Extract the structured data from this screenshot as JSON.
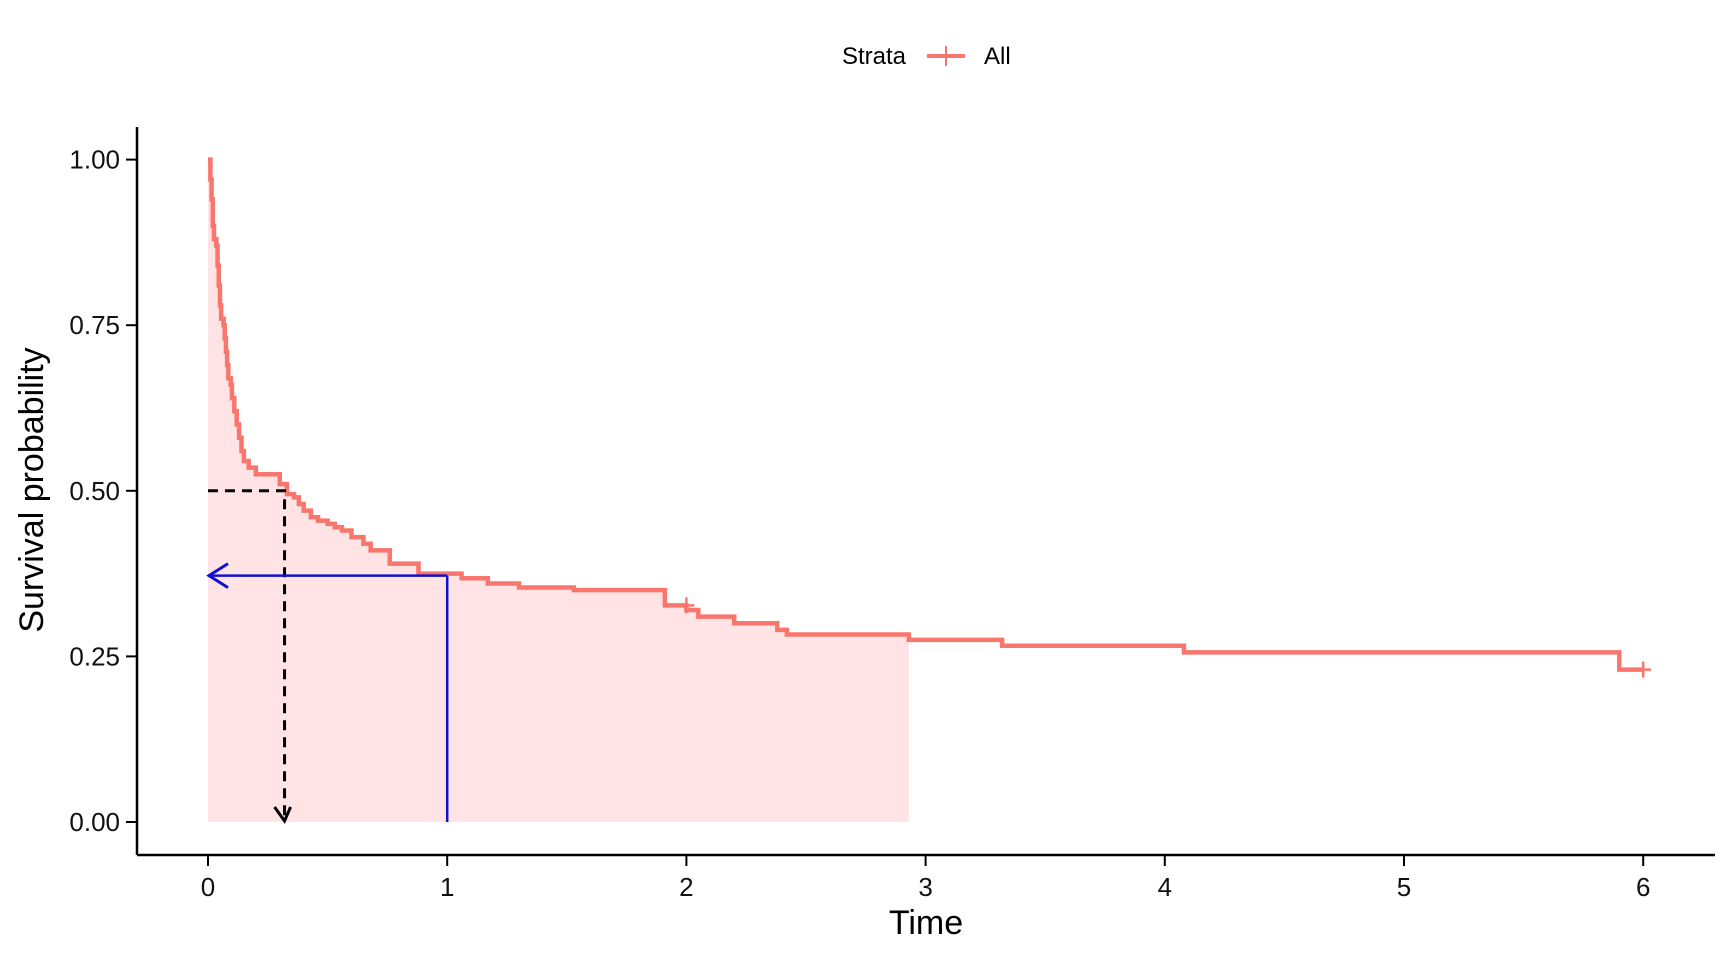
{
  "chart_data": {
    "type": "line",
    "subtype": "kaplan-meier",
    "xlabel": "Time",
    "ylabel": "Survival probability",
    "xlim": [
      -0.3,
      6.3
    ],
    "ylim": [
      -0.05,
      1.05
    ],
    "x_ticks": [
      0,
      1,
      2,
      3,
      4,
      5,
      6
    ],
    "y_ticks": [
      0.0,
      0.25,
      0.5,
      0.75,
      1.0
    ],
    "y_tick_labels": [
      "0.00",
      "0.25",
      "0.50",
      "0.75",
      "1.00"
    ],
    "grid": false,
    "legend": {
      "position": "top",
      "title": "Strata",
      "entries": [
        "All"
      ]
    },
    "colors": {
      "curve": "#f8766d",
      "fill": "#ffe3e5",
      "arrow": "#1010d0",
      "median_guide": "#000000"
    },
    "series": [
      {
        "name": "All",
        "steps": [
          [
            0.0,
            1.0
          ],
          [
            0.01,
            0.97
          ],
          [
            0.015,
            0.94
          ],
          [
            0.02,
            0.9
          ],
          [
            0.025,
            0.88
          ],
          [
            0.035,
            0.87
          ],
          [
            0.04,
            0.84
          ],
          [
            0.045,
            0.81
          ],
          [
            0.05,
            0.78
          ],
          [
            0.055,
            0.76
          ],
          [
            0.065,
            0.75
          ],
          [
            0.07,
            0.73
          ],
          [
            0.075,
            0.71
          ],
          [
            0.08,
            0.69
          ],
          [
            0.085,
            0.67
          ],
          [
            0.095,
            0.66
          ],
          [
            0.1,
            0.64
          ],
          [
            0.11,
            0.62
          ],
          [
            0.12,
            0.6
          ],
          [
            0.13,
            0.58
          ],
          [
            0.14,
            0.56
          ],
          [
            0.15,
            0.545
          ],
          [
            0.17,
            0.535
          ],
          [
            0.2,
            0.525
          ],
          [
            0.3,
            0.51
          ],
          [
            0.33,
            0.495
          ],
          [
            0.36,
            0.49
          ],
          [
            0.38,
            0.48
          ],
          [
            0.4,
            0.47
          ],
          [
            0.43,
            0.46
          ],
          [
            0.46,
            0.455
          ],
          [
            0.5,
            0.45
          ],
          [
            0.53,
            0.445
          ],
          [
            0.56,
            0.44
          ],
          [
            0.6,
            0.43
          ],
          [
            0.65,
            0.42
          ],
          [
            0.68,
            0.41
          ],
          [
            0.76,
            0.39
          ],
          [
            0.88,
            0.375
          ],
          [
            1.06,
            0.368
          ],
          [
            1.17,
            0.36
          ],
          [
            1.3,
            0.354
          ],
          [
            1.53,
            0.35
          ],
          [
            1.91,
            0.327
          ],
          [
            2.0,
            0.32
          ],
          [
            2.05,
            0.31
          ],
          [
            2.2,
            0.3
          ],
          [
            2.38,
            0.29
          ],
          [
            2.42,
            0.283
          ],
          [
            2.93,
            0.275
          ],
          [
            3.32,
            0.266
          ],
          [
            4.08,
            0.256
          ],
          [
            5.9,
            0.23
          ]
        ],
        "end_time": 6.0,
        "censor_marks": [
          [
            2.0,
            0.327
          ],
          [
            6.0,
            0.23
          ]
        ]
      }
    ],
    "shaded_area": {
      "x_from": 0,
      "x_to": 2.93
    },
    "annotations": {
      "median_guide": {
        "survival": 0.5,
        "time": 0.32,
        "style": "dashed"
      },
      "time_arrow": {
        "time": 1.0,
        "survival": 0.372
      }
    }
  }
}
